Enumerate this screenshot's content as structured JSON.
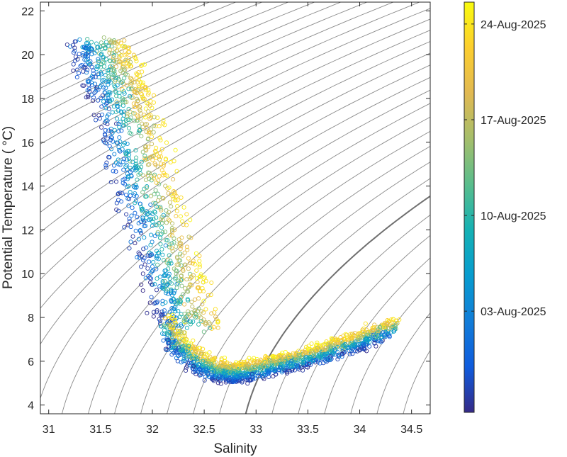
{
  "chart_data": {
    "type": "scatter",
    "title": "",
    "xlabel": "Salinity",
    "ylabel": "Potential Temperature ( °C)",
    "xlim": [
      30.92,
      34.68
    ],
    "ylim": [
      3.6,
      22.4
    ],
    "xticks": [
      31,
      31.5,
      32,
      32.5,
      33,
      33.5,
      34,
      34.5
    ],
    "xtick_labels": [
      "31",
      "31.5",
      "32",
      "32.5",
      "33",
      "33.5",
      "34",
      "34.5"
    ],
    "yticks": [
      4,
      6,
      8,
      10,
      12,
      14,
      16,
      18,
      20,
      22
    ],
    "ytick_labels": [
      "4",
      "6",
      "8",
      "10",
      "12",
      "14",
      "16",
      "18",
      "20",
      "22"
    ],
    "grid": false,
    "background_contours": "density isopycnals (thin grey lines)",
    "colorbar": {
      "label": "",
      "colormap": "parula",
      "range_days": [
        0,
        30
      ],
      "tick_labels": [
        "03-Aug-2025",
        "10-Aug-2025",
        "17-Aug-2025",
        "24-Aug-2025"
      ],
      "tick_days": [
        7.4,
        14.4,
        21.4,
        28.4
      ]
    },
    "series": [
      {
        "marker": "open circle",
        "trace_anchors": [
          [
            31.22,
            20.6
          ],
          [
            31.3,
            19.5
          ],
          [
            31.4,
            18.4
          ],
          [
            31.5,
            16.8
          ],
          [
            31.62,
            14.6
          ],
          [
            31.78,
            12.2
          ],
          [
            31.92,
            10.0
          ],
          [
            32.05,
            8.2
          ],
          [
            32.2,
            6.7
          ],
          [
            32.4,
            5.8
          ],
          [
            32.6,
            5.4
          ],
          [
            32.75,
            5.3
          ],
          [
            32.9,
            5.4
          ],
          [
            33.1,
            5.6
          ],
          [
            33.3,
            5.8
          ],
          [
            33.55,
            6.1
          ],
          [
            33.8,
            6.5
          ],
          [
            34.05,
            6.9
          ],
          [
            34.3,
            7.4
          ]
        ]
      }
    ]
  }
}
